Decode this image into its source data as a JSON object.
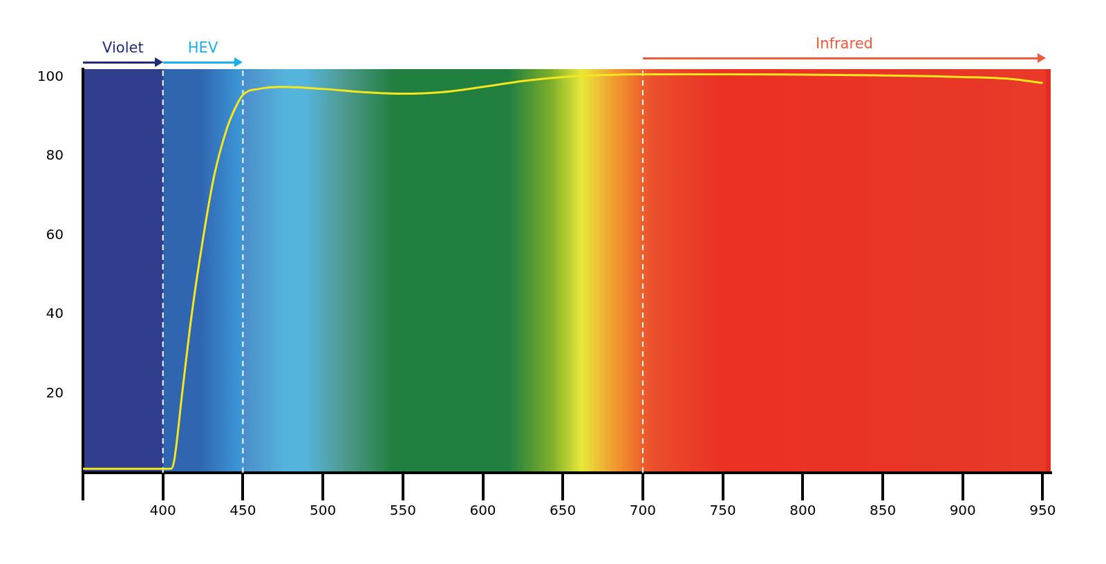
{
  "chart_data": {
    "type": "line",
    "x": [
      350,
      380,
      405,
      407,
      412,
      418,
      425,
      432,
      440,
      445,
      450,
      460,
      475,
      500,
      525,
      550,
      575,
      600,
      625,
      650,
      675,
      700,
      750,
      800,
      850,
      900,
      930,
      950
    ],
    "series": [
      {
        "color": "#f5e61e",
        "values": [
          1,
          1,
          1,
          3,
          20,
          40,
          59,
          75,
          87,
          92,
          95.5,
          97,
          97.5,
          97,
          96.2,
          95.8,
          96.2,
          97.5,
          99,
          100,
          100.5,
          100.7,
          100.7,
          100.6,
          100.4,
          100,
          99.5,
          98.5
        ]
      }
    ],
    "xlim": [
      350,
      955
    ],
    "ylim": [
      0,
      102
    ],
    "xticks": [
      {
        "value": 350,
        "label": null
      },
      400,
      450,
      500,
      550,
      600,
      650,
      700,
      750,
      800,
      850,
      900,
      950
    ],
    "yticks": [
      20,
      40,
      60,
      80,
      100
    ],
    "grid": false,
    "legend": false,
    "marker": "none",
    "line_style": "solid",
    "ref_lines": [
      {
        "axis": "x",
        "value": 400,
        "color": "#ffffff",
        "line_style": "dashed"
      },
      {
        "axis": "x",
        "value": 450,
        "color": "#ffffff",
        "line_style": "dashed"
      },
      {
        "axis": "x",
        "value": 700,
        "color": "#ffffff",
        "line_style": "dashed"
      }
    ],
    "bands": [
      {
        "axis": "x",
        "from": 350,
        "to": 400,
        "label": "Violet",
        "color": "#1f2a7a"
      },
      {
        "axis": "x",
        "from": 400,
        "to": 450,
        "label": "HEV",
        "color": "#1ab0f0"
      },
      {
        "axis": "x",
        "from": 700,
        "to": 952,
        "label": "Infrared",
        "color": "#f05a3a"
      }
    ]
  }
}
